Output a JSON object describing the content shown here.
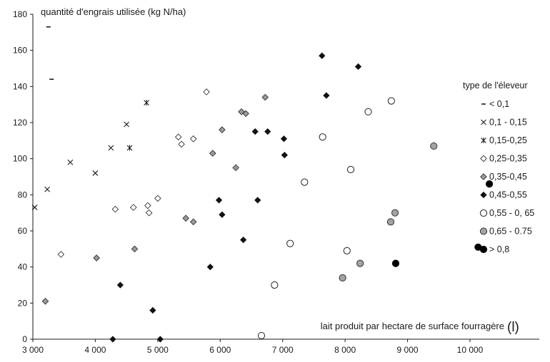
{
  "chart_data": {
    "type": "scatter",
    "title": "",
    "ylabel": "quantité d'engrais utilisée (kg N/ha)",
    "xlabel": "lait produit par hectare de surface fourragère",
    "xlabel_unit": "(l)",
    "xlim": [
      3000,
      10500
    ],
    "ylim": [
      0,
      180
    ],
    "xticks": [
      3000,
      4000,
      5000,
      6000,
      7000,
      8000,
      9000,
      10000
    ],
    "xtick_labels": [
      "3 000",
      "4 000",
      "5 000",
      "6 000",
      "7 000",
      "8 000",
      "9 000",
      "10 000"
    ],
    "yticks": [
      0,
      20,
      40,
      60,
      80,
      100,
      120,
      140,
      160,
      180
    ],
    "ytick_labels": [
      "0",
      "20",
      "40",
      "60",
      "80",
      "100",
      "120",
      "140",
      "160",
      "180"
    ],
    "grid": false,
    "legend": {
      "title": "type de l'éleveur",
      "placement": "right"
    },
    "series": [
      {
        "name": "< 0,1",
        "marker": "dash",
        "points": [
          [
            3250,
            173
          ],
          [
            3300,
            144
          ]
        ]
      },
      {
        "name": "0,1 - 0,15",
        "marker": "x",
        "points": [
          [
            3230,
            83
          ],
          [
            3030,
            73
          ],
          [
            3600,
            98
          ],
          [
            4000,
            92
          ],
          [
            4250,
            106
          ],
          [
            4500,
            119
          ]
        ]
      },
      {
        "name": "0,15-0,25",
        "marker": "asterisk",
        "points": [
          [
            4550,
            106
          ],
          [
            4820,
            131
          ]
        ]
      },
      {
        "name": "0,25-0,35",
        "marker": "diamond-open",
        "points": [
          [
            3450,
            47
          ],
          [
            4320,
            72
          ],
          [
            4610,
            73
          ],
          [
            4840,
            74
          ],
          [
            4860,
            70
          ],
          [
            5000,
            78
          ],
          [
            5330,
            112
          ],
          [
            5380,
            108
          ],
          [
            5570,
            111
          ],
          [
            5780,
            137
          ]
        ]
      },
      {
        "name": "0,35-0,45",
        "marker": "diamond-gray",
        "points": [
          [
            3200,
            21
          ],
          [
            4020,
            45
          ],
          [
            4630,
            50
          ],
          [
            5450,
            67
          ],
          [
            5570,
            65
          ],
          [
            5880,
            103
          ],
          [
            6030,
            116
          ],
          [
            6250,
            95
          ],
          [
            6340,
            126
          ],
          [
            6410,
            125
          ],
          [
            6720,
            134
          ]
        ]
      },
      {
        "name": "0,45-0,55",
        "marker": "diamond-filled",
        "points": [
          [
            4280,
            0
          ],
          [
            4400,
            30
          ],
          [
            4920,
            16
          ],
          [
            5040,
            0
          ],
          [
            5840,
            40
          ],
          [
            5980,
            77
          ],
          [
            6030,
            69
          ],
          [
            6370,
            55
          ],
          [
            6560,
            115
          ],
          [
            6600,
            77
          ],
          [
            6760,
            115
          ],
          [
            7020,
            111
          ],
          [
            7030,
            102
          ],
          [
            7630,
            157
          ],
          [
            7700,
            135
          ],
          [
            8210,
            151
          ]
        ]
      },
      {
        "name": "0,55 - 0, 65",
        "marker": "circle-open",
        "points": [
          [
            6660,
            2
          ],
          [
            6870,
            30
          ],
          [
            7120,
            53
          ],
          [
            7350,
            87
          ],
          [
            7640,
            112
          ],
          [
            8030,
            49
          ],
          [
            8090,
            94
          ],
          [
            8370,
            126
          ],
          [
            8740,
            132
          ]
        ]
      },
      {
        "name": "0,65 - 0.75",
        "marker": "circle-gray",
        "points": [
          [
            7960,
            34
          ],
          [
            8240,
            42
          ],
          [
            8730,
            65
          ],
          [
            8800,
            70
          ],
          [
            9420,
            107
          ]
        ]
      },
      {
        "name": "> 0,8",
        "marker": "circle-filled",
        "points": [
          [
            8810,
            42
          ],
          [
            10130,
            51
          ],
          [
            10310,
            86
          ]
        ]
      }
    ]
  }
}
